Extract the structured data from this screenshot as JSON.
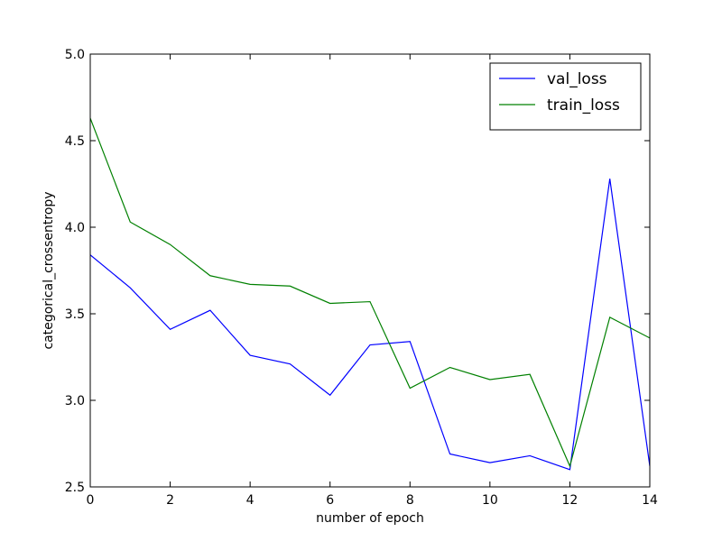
{
  "chart_data": {
    "type": "line",
    "title": "",
    "xlabel": "number of epoch",
    "ylabel": "categorical_crossentropy",
    "xlim": [
      0,
      14
    ],
    "ylim": [
      2.5,
      5.0
    ],
    "xticks": [
      0,
      2,
      4,
      6,
      8,
      10,
      12,
      14
    ],
    "xtick_labels": [
      "0",
      "2",
      "4",
      "6",
      "8",
      "10",
      "12",
      "14"
    ],
    "yticks": [
      2.5,
      3.0,
      3.5,
      4.0,
      4.5,
      5.0
    ],
    "ytick_labels": [
      "2.5",
      "3.0",
      "3.5",
      "4.0",
      "4.5",
      "5.0"
    ],
    "grid": false,
    "legend_position": "top-right",
    "x": [
      0,
      1,
      2,
      3,
      4,
      5,
      6,
      7,
      8,
      9,
      10,
      11,
      12,
      13,
      14
    ],
    "series": [
      {
        "name": "val_loss",
        "color": "#0000ff",
        "values": [
          3.84,
          3.65,
          3.41,
          3.52,
          3.26,
          3.21,
          3.03,
          3.32,
          3.34,
          2.69,
          2.64,
          2.68,
          2.6,
          4.28,
          2.62
        ]
      },
      {
        "name": "train_loss",
        "color": "#008000",
        "values": [
          4.63,
          4.03,
          3.9,
          3.72,
          3.67,
          3.66,
          3.56,
          3.57,
          3.07,
          3.19,
          3.12,
          3.15,
          2.62,
          3.48,
          3.36
        ]
      }
    ]
  }
}
